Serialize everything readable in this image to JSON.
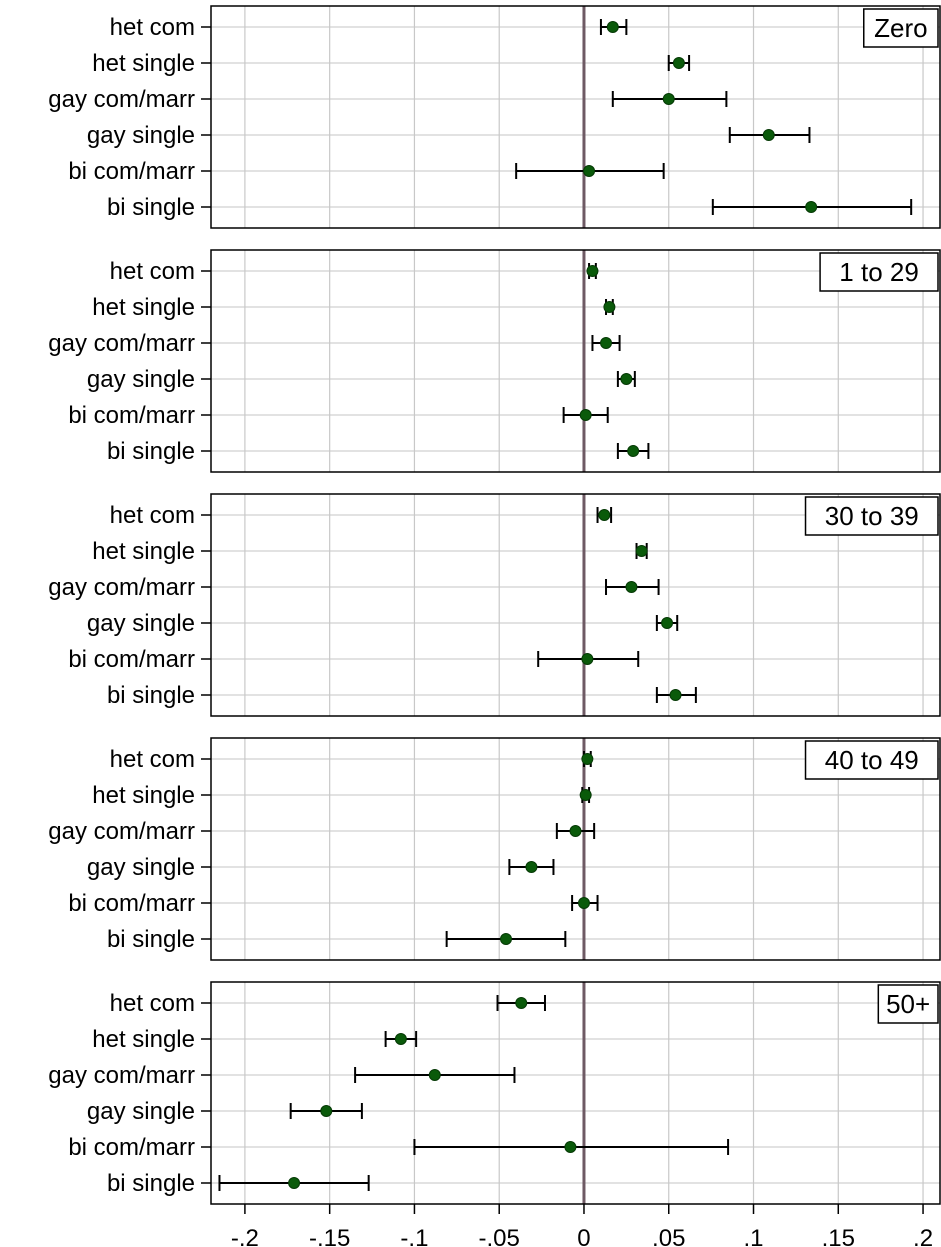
{
  "chart_data": {
    "type": "scatter",
    "subtype": "coefficient-plot-with-confidence-intervals",
    "categories": [
      "het com",
      "het single",
      "gay com/marr",
      "gay single",
      "bi com/marr",
      "bi single"
    ],
    "xlim": [
      -0.22,
      0.21
    ],
    "xticks": [
      -0.2,
      -0.15,
      -0.1,
      -0.05,
      0,
      0.05,
      0.1,
      0.15,
      0.2
    ],
    "xtick_labels": [
      "-.2",
      "-.15",
      "-.1",
      "-.05",
      "0",
      ".05",
      ".1",
      ".15",
      ".2"
    ],
    "reference_line": 0,
    "grid": true,
    "colors": {
      "point": "#0a5a0a",
      "whisker": "#000000",
      "grid": "#c8c8c8",
      "hgrid": "#e2e2e2",
      "zero_line": "#6e5a64",
      "frame": "#000000"
    },
    "panels": [
      {
        "title": "Zero",
        "points": [
          {
            "est": 0.017,
            "lo": 0.01,
            "hi": 0.025
          },
          {
            "est": 0.056,
            "lo": 0.05,
            "hi": 0.062
          },
          {
            "est": 0.05,
            "lo": 0.017,
            "hi": 0.084
          },
          {
            "est": 0.109,
            "lo": 0.086,
            "hi": 0.133
          },
          {
            "est": 0.003,
            "lo": -0.04,
            "hi": 0.047
          },
          {
            "est": 0.134,
            "lo": 0.076,
            "hi": 0.193
          }
        ]
      },
      {
        "title": "1 to 29",
        "points": [
          {
            "est": 0.005,
            "lo": 0.003,
            "hi": 0.007
          },
          {
            "est": 0.015,
            "lo": 0.013,
            "hi": 0.017
          },
          {
            "est": 0.013,
            "lo": 0.005,
            "hi": 0.021
          },
          {
            "est": 0.025,
            "lo": 0.02,
            "hi": 0.03
          },
          {
            "est": 0.001,
            "lo": -0.012,
            "hi": 0.014
          },
          {
            "est": 0.029,
            "lo": 0.02,
            "hi": 0.038
          }
        ]
      },
      {
        "title": "30 to 39",
        "points": [
          {
            "est": 0.012,
            "lo": 0.008,
            "hi": 0.016
          },
          {
            "est": 0.034,
            "lo": 0.031,
            "hi": 0.037
          },
          {
            "est": 0.028,
            "lo": 0.013,
            "hi": 0.044
          },
          {
            "est": 0.049,
            "lo": 0.043,
            "hi": 0.055
          },
          {
            "est": 0.002,
            "lo": -0.027,
            "hi": 0.032
          },
          {
            "est": 0.054,
            "lo": 0.043,
            "hi": 0.066
          }
        ]
      },
      {
        "title": "40 to 49",
        "points": [
          {
            "est": 0.002,
            "lo": 0.0,
            "hi": 0.004
          },
          {
            "est": 0.001,
            "lo": -0.001,
            "hi": 0.003
          },
          {
            "est": -0.005,
            "lo": -0.016,
            "hi": 0.006
          },
          {
            "est": -0.031,
            "lo": -0.044,
            "hi": -0.018
          },
          {
            "est": 0.0,
            "lo": -0.007,
            "hi": 0.008
          },
          {
            "est": -0.046,
            "lo": -0.081,
            "hi": -0.011
          }
        ]
      },
      {
        "title": "50+",
        "points": [
          {
            "est": -0.037,
            "lo": -0.051,
            "hi": -0.023
          },
          {
            "est": -0.108,
            "lo": -0.117,
            "hi": -0.099
          },
          {
            "est": -0.088,
            "lo": -0.135,
            "hi": -0.041
          },
          {
            "est": -0.152,
            "lo": -0.173,
            "hi": -0.131
          },
          {
            "est": -0.008,
            "lo": -0.1,
            "hi": 0.085
          },
          {
            "est": -0.171,
            "lo": -0.215,
            "hi": -0.127
          }
        ]
      }
    ]
  }
}
